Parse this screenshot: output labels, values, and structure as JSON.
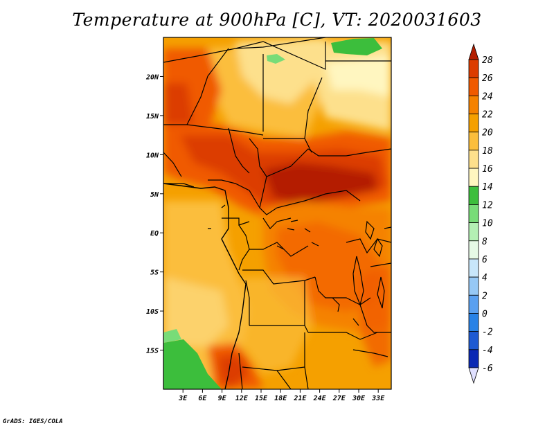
{
  "title": "Temperature at 900hPa [C], VT: 2020031603",
  "credit": "GrADS: IGES/COLA",
  "map": {
    "lon_range": [
      0,
      35
    ],
    "lat_range": [
      -20,
      25
    ],
    "lat_ticks": [
      {
        "value": 20,
        "label": "20N"
      },
      {
        "value": 15,
        "label": "15N"
      },
      {
        "value": 10,
        "label": "10N"
      },
      {
        "value": 5,
        "label": "5N"
      },
      {
        "value": 0,
        "label": "EQ"
      },
      {
        "value": -5,
        "label": "5S"
      },
      {
        "value": -10,
        "label": "10S"
      },
      {
        "value": -15,
        "label": "15S"
      }
    ],
    "lon_ticks": [
      {
        "value": 3,
        "label": "3E"
      },
      {
        "value": 6,
        "label": "6E"
      },
      {
        "value": 9,
        "label": "9E"
      },
      {
        "value": 12,
        "label": "12E"
      },
      {
        "value": 15,
        "label": "15E"
      },
      {
        "value": 18,
        "label": "18E"
      },
      {
        "value": 21,
        "label": "21E"
      },
      {
        "value": 24,
        "label": "24E"
      },
      {
        "value": 27,
        "label": "27E"
      },
      {
        "value": 30,
        "label": "30E"
      },
      {
        "value": 33,
        "label": "33E"
      }
    ]
  },
  "colorbar": {
    "levels": [
      "28",
      "26",
      "24",
      "22",
      "20",
      "18",
      "16",
      "14",
      "12",
      "10",
      "8",
      "6",
      "4",
      "2",
      "0",
      "-2",
      "-4",
      "-6"
    ],
    "colors": [
      "#b41e00",
      "#dc3c00",
      "#f05a00",
      "#f58200",
      "#f5a000",
      "#fbbe3c",
      "#fde08c",
      "#fff6c0",
      "#3cbe3c",
      "#78dc78",
      "#b4f0b4",
      "#e6fae6",
      "#c8e6fa",
      "#96c8f5",
      "#5aa0f0",
      "#2882e6",
      "#1e5ad2",
      "#0a28b4",
      "#000a64",
      "#e0e0ff"
    ]
  }
}
